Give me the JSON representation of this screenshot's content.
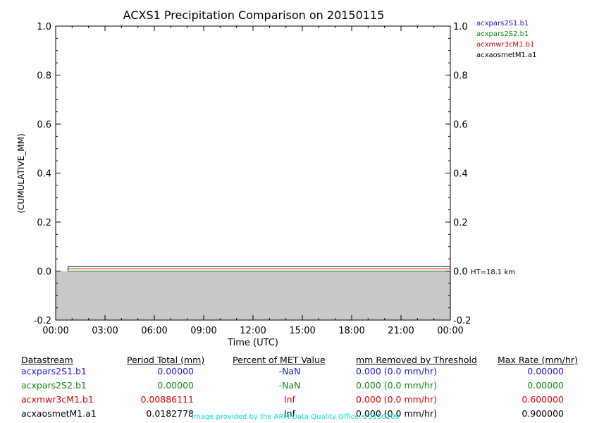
{
  "chart_data": {
    "type": "line",
    "title": "ACXS1 Precipitation Comparison on 20150115",
    "xlabel": "Time (UTC)",
    "ylabel": "(CUMULATIVE_MM)",
    "x_ticks": [
      "00:00",
      "03:00",
      "06:00",
      "09:00",
      "12:00",
      "15:00",
      "18:00",
      "21:00",
      "00:00"
    ],
    "y_ticks": [
      "-0.2",
      "0.0",
      "0.2",
      "0.4",
      "0.6",
      "0.8",
      "1.0"
    ],
    "xlim_hours": [
      0,
      24
    ],
    "ylim": [
      -0.2,
      1.0
    ],
    "height_annotation": "HT=18.1 km",
    "shaded_below_zero": true,
    "shade_color": "#c8c8c8",
    "series": [
      {
        "name": "acxpars2S1.b1",
        "color": "#1a1adc",
        "x_hours": [
          0.75,
          24
        ],
        "y": [
          0.0,
          0.0
        ]
      },
      {
        "name": "acxpars2S2.b1",
        "color": "#138a13",
        "x_hours": [
          0.75,
          24
        ],
        "y": [
          0.0,
          0.0
        ]
      },
      {
        "name": "acxmwr3cM1.b1",
        "color": "#e00000",
        "x_hours": [
          0.75,
          24
        ],
        "y": [
          0.00886111,
          0.00886111
        ]
      },
      {
        "name": "acxaosmetM1.a1",
        "color": "#000000",
        "x_hours": [
          0.75,
          24
        ],
        "y": [
          0.0182778,
          0.0182778
        ]
      }
    ]
  },
  "table": {
    "headers": [
      "Datastream",
      "Period Total (mm)",
      "Percent of MET Value",
      "mm Removed by Threshold",
      "Max Rate (mm/hr)"
    ],
    "rows": [
      {
        "datastream": "acxpars2S1.b1",
        "total": "0.00000",
        "percent": "-NaN",
        "removed": "0.000 (0.0 mm/hr)",
        "max_rate": "0.00000",
        "color": "#1a1adc"
      },
      {
        "datastream": "acxpars2S2.b1",
        "total": "0.00000",
        "percent": "-NaN",
        "removed": "0.000 (0.0 mm/hr)",
        "max_rate": "0.00000",
        "color": "#138a13"
      },
      {
        "datastream": "acxmwr3cM1.b1",
        "total": "0.00886111",
        "percent": "Inf",
        "removed": "0.000 (0.0 mm/hr)",
        "max_rate": "0.600000",
        "color": "#e00000"
      },
      {
        "datastream": "acxaosmetM1.a1",
        "total": "0.0182778",
        "percent": "Inf",
        "removed": "0.000 (0.0 mm/hr)",
        "max_rate": "0.900000",
        "color": "#000000"
      }
    ]
  },
  "credit": "Image provided by the ARM Data Quality Office: 20150209"
}
